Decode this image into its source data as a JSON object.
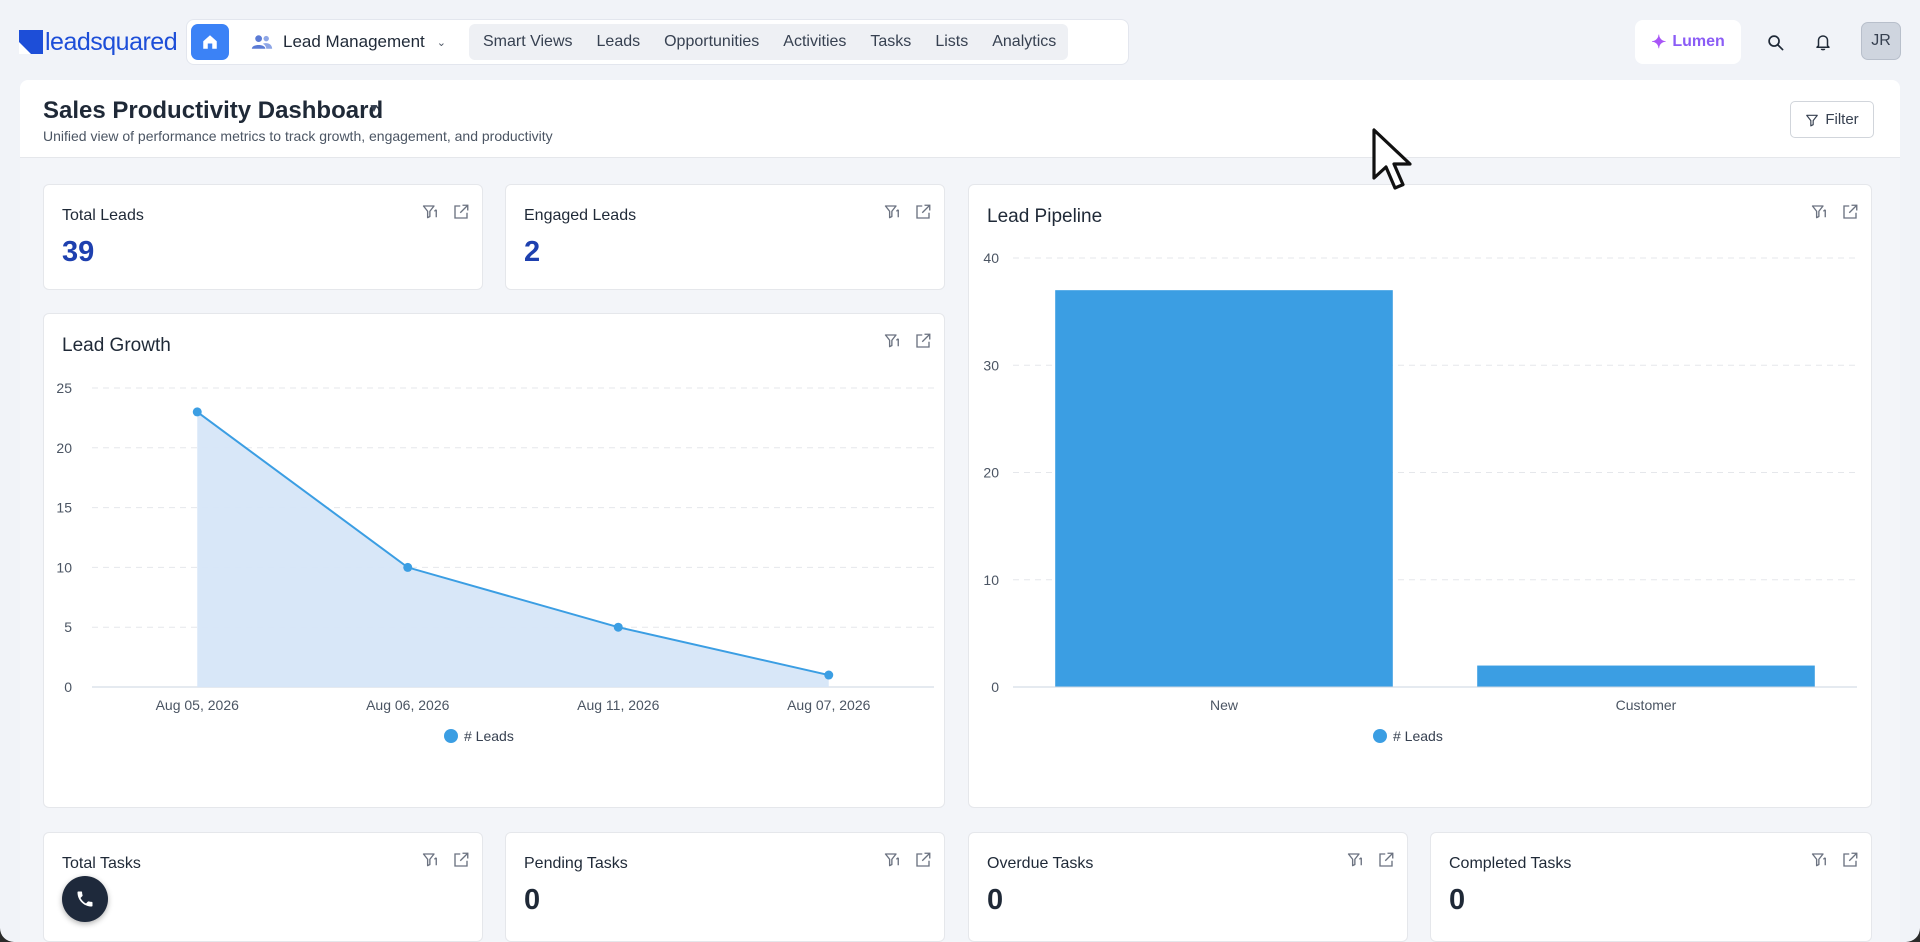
{
  "app": {
    "logo_text": "leadsquared",
    "module_selector": "Lead Management",
    "nav_items": [
      "Smart Views",
      "Leads",
      "Opportunities",
      "Activities",
      "Tasks",
      "Lists",
      "Analytics"
    ],
    "lumen_label": "Lumen",
    "avatar_initials": "JR"
  },
  "dashboard": {
    "title": "Sales Productivity Dashboard",
    "subtitle": "Unified view of performance metrics to track growth, engagement, and productivity",
    "filter_label": "Filter"
  },
  "kpis": {
    "total_leads": {
      "label": "Total Leads",
      "value": "39"
    },
    "engaged_leads": {
      "label": "Engaged Leads",
      "value": "2"
    },
    "total_tasks": {
      "label": "Total Tasks",
      "value": ""
    },
    "pending_tasks": {
      "label": "Pending Tasks",
      "value": "0"
    },
    "overdue_tasks": {
      "label": "Overdue Tasks",
      "value": "0"
    },
    "completed_tasks": {
      "label": "Completed Tasks",
      "value": "0"
    }
  },
  "colors": {
    "accent": "#3b82f6",
    "series": "#3b9ee3",
    "area_fill": "#d6e6f8",
    "lumen": "#8b5cf6"
  },
  "chart_data": [
    {
      "type": "area",
      "title": "Lead Growth",
      "categories": [
        "Aug 05, 2026",
        "Aug 06, 2026",
        "Aug 11, 2026",
        "Aug 07, 2026"
      ],
      "series": [
        {
          "name": "# Leads",
          "values": [
            23,
            10,
            5,
            1
          ]
        }
      ],
      "ylim": [
        0,
        25
      ],
      "yticks": [
        0,
        5,
        10,
        15,
        20,
        25
      ],
      "grid": true,
      "legend": "bottom-center"
    },
    {
      "type": "bar",
      "title": "Lead Pipeline",
      "categories": [
        "New",
        "Customer"
      ],
      "series": [
        {
          "name": "# Leads",
          "values": [
            37,
            2
          ]
        }
      ],
      "ylim": [
        0,
        40
      ],
      "yticks": [
        0,
        10,
        20,
        30,
        40
      ],
      "grid": true,
      "legend": "bottom-center"
    }
  ]
}
